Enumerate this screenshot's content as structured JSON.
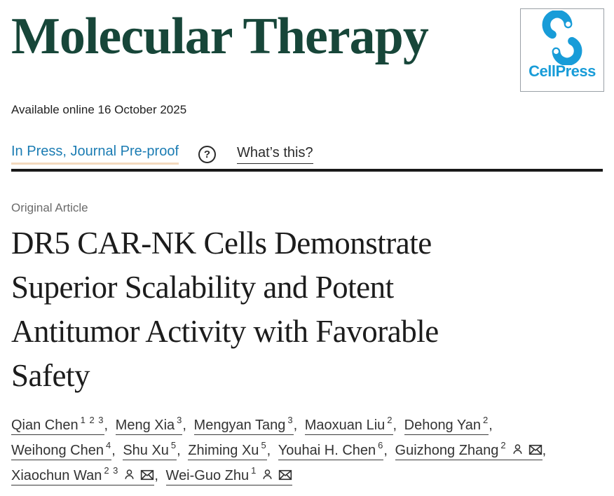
{
  "masthead": {
    "journal_title": "Molecular Therapy",
    "publisher": "CellPress",
    "title_color": "#174639",
    "logo_blue": "#189cd8"
  },
  "meta": {
    "available_online": "Available online 16 October 2025"
  },
  "status_bar": {
    "in_press_label": "In Press, Journal Pre-proof",
    "help_icon": "?",
    "whats_this_label": "What’s this?",
    "link_color": "#1b7cb3",
    "highlight_color": "#f3d9bd"
  },
  "article": {
    "category": "Original Article",
    "title": "DR5 CAR-NK Cells Demonstrate Superior Scalability and Potent Antitumor Activity with Favorable Safety",
    "title_lines": [
      "DR5 CAR-NK Cells Demonstrate",
      "Superior Scalability and Potent",
      "Antitumor Activity with Favorable",
      "Safety"
    ]
  },
  "authors": [
    {
      "name": "Qian Chen",
      "sups": "1 2 3"
    },
    {
      "name": "Meng Xia",
      "sups": "3"
    },
    {
      "name": "Mengyan Tang",
      "sups": "3"
    },
    {
      "name": "Maoxuan Liu",
      "sups": "2"
    },
    {
      "name": "Dehong Yan",
      "sups": "2",
      "line_break_after": true
    },
    {
      "name": "Weihong Chen",
      "sups": "4"
    },
    {
      "name": "Shu Xu",
      "sups": "5"
    },
    {
      "name": "Zhiming Xu",
      "sups": "5"
    },
    {
      "name": "Youhai H. Chen",
      "sups": "6"
    },
    {
      "name": "Guizhong Zhang",
      "sups": "2",
      "person_icon": true,
      "email_icon": true,
      "line_break_after": true
    },
    {
      "name": "Xiaochun Wan",
      "sups": "2 3",
      "person_icon": true,
      "email_icon": true
    },
    {
      "name": "Wei-Guo Zhu",
      "sups": "1",
      "person_icon": true,
      "email_icon": true
    }
  ]
}
